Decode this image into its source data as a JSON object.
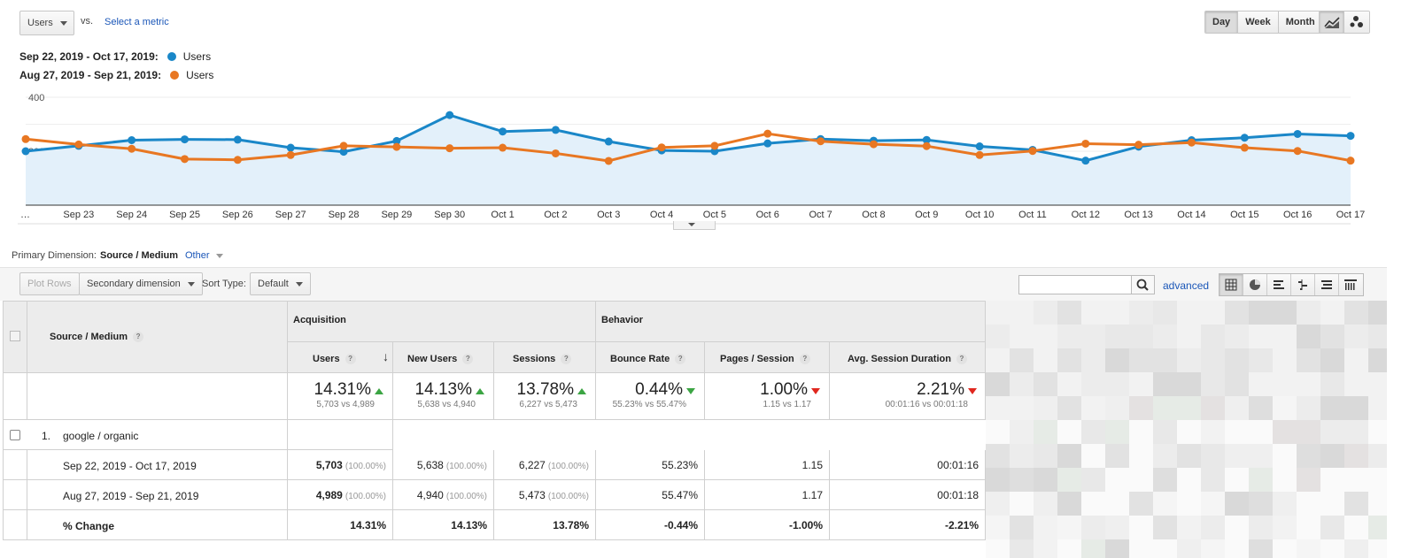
{
  "top": {
    "metric_label": "Users",
    "vs_label": "vs.",
    "select_metric": "Select a metric",
    "period_buttons": [
      "Day",
      "Week",
      "Month"
    ]
  },
  "legend": {
    "current_range": "Sep 22, 2019 - Oct 17, 2019:",
    "current_metric": "Users",
    "previous_range": "Aug 27, 2019 - Sep 21, 2019:",
    "previous_metric": "Users"
  },
  "colors": {
    "current": "#1a87c8",
    "previous": "#e87722",
    "area": "#e3f0fa"
  },
  "chart_data": {
    "type": "line",
    "x": [
      "…",
      "Sep 23",
      "Sep 24",
      "Sep 25",
      "Sep 26",
      "Sep 27",
      "Sep 28",
      "Sep 29",
      "Sep 30",
      "Oct 1",
      "Oct 2",
      "Oct 3",
      "Oct 4",
      "Oct 5",
      "Oct 6",
      "Oct 7",
      "Oct 8",
      "Oct 9",
      "Oct 10",
      "Oct 11",
      "Oct 12",
      "Oct 13",
      "Oct 14",
      "Oct 15",
      "Oct 16",
      "Oct 17"
    ],
    "yticks": [
      "400",
      "200"
    ],
    "ylim": [
      0,
      400
    ],
    "series": [
      {
        "name": "Users",
        "values": [
          200,
          220,
          241,
          244,
          243,
          213,
          198,
          238,
          334,
          273,
          279,
          236,
          203,
          200,
          229,
          245,
          239,
          242,
          218,
          205,
          165,
          217,
          241,
          250,
          264,
          257
        ]
      },
      {
        "name": "Users",
        "values": [
          245,
          225,
          209,
          171,
          168,
          186,
          220,
          216,
          211,
          213,
          192,
          164,
          214,
          220,
          265,
          237,
          226,
          219,
          186,
          201,
          228,
          224,
          232,
          213,
          201,
          165
        ]
      }
    ]
  },
  "dimension": {
    "label": "Primary Dimension:",
    "active": "Source / Medium",
    "other": "Other"
  },
  "toolbar": {
    "plot_rows": "Plot Rows",
    "secondary": "Secondary dimension",
    "sort_label": "Sort Type:",
    "sort_value": "Default",
    "advanced": "advanced"
  },
  "table": {
    "dim_header": "Source / Medium",
    "group_acq": "Acquisition",
    "group_beh": "Behavior",
    "columns": [
      "Users",
      "New Users",
      "Sessions",
      "Bounce Rate",
      "Pages / Session",
      "Avg. Session Duration"
    ],
    "summary": [
      {
        "value": "14.31%",
        "sub": "5,703 vs 4,989"
      },
      {
        "value": "14.13%",
        "sub": "5,638 vs 4,940"
      },
      {
        "value": "13.78%",
        "sub": "6,227 vs 5,473"
      },
      {
        "value": "0.44%",
        "sub": "55.23% vs 55.47%"
      },
      {
        "value": "1.00%",
        "sub": "1.15 vs 1.17"
      },
      {
        "value": "2.21%",
        "sub": "00:01:16 vs 00:01:18"
      }
    ],
    "row_index": "1.",
    "row_label": "google / organic",
    "rows": [
      {
        "label": "Sep 22, 2019 - Oct 17, 2019",
        "users": "5,703",
        "users_pct": "(100.00%)",
        "new": "5,638",
        "new_pct": "(100.00%)",
        "sessions": "6,227",
        "sessions_pct": "(100.00%)",
        "bounce": "55.23%",
        "pages": "1.15",
        "duration": "00:01:16"
      },
      {
        "label": "Aug 27, 2019 - Sep 21, 2019",
        "users": "4,989",
        "users_pct": "(100.00%)",
        "new": "4,940",
        "new_pct": "(100.00%)",
        "sessions": "5,473",
        "sessions_pct": "(100.00%)",
        "bounce": "55.47%",
        "pages": "1.17",
        "duration": "00:01:18"
      },
      {
        "label": "% Change",
        "users": "14.31%",
        "users_pct": "",
        "new": "14.13%",
        "new_pct": "",
        "sessions": "13.78%",
        "sessions_pct": "",
        "bounce": "-0.44%",
        "pages": "-1.00%",
        "duration": "-2.21%"
      }
    ]
  }
}
